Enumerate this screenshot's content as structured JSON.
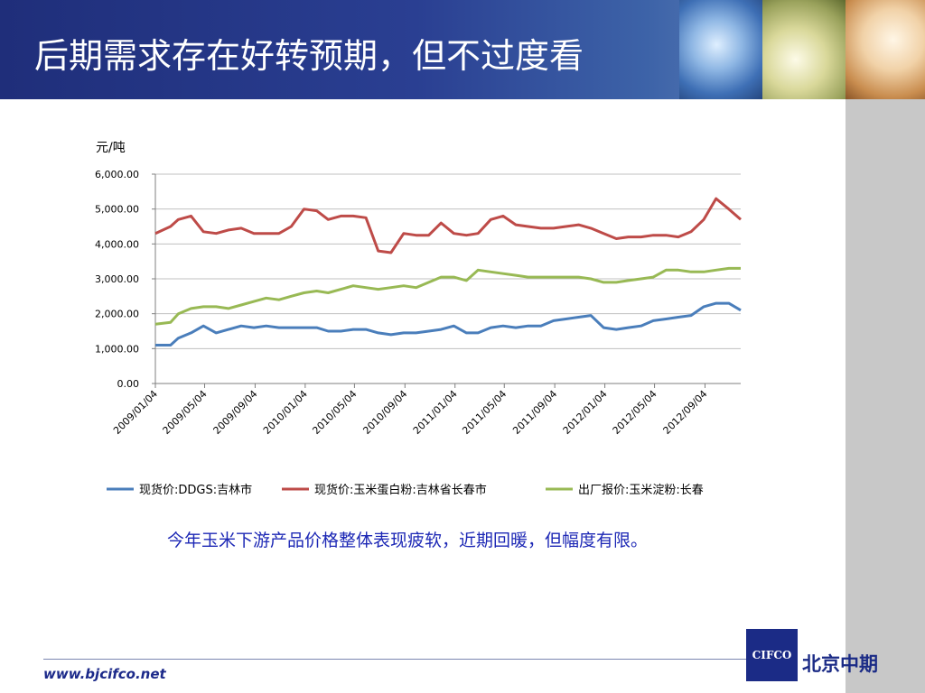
{
  "slide": {
    "title": "后期需求存在好转预期，但不过度看",
    "caption": "今年玉米下游产品价格整体表现疲软，近期回暖，但幅度有限。",
    "footer_url": "www.bjcifco.net",
    "logo_abbr": "CIFCO",
    "logo_name": "北京中期"
  },
  "chart_data": {
    "type": "line",
    "ylabel": "元/吨",
    "ylim": [
      0,
      6000
    ],
    "yticks": [
      "6,000.00",
      "5,000.00",
      "4,000.00",
      "3,000.00",
      "2,000.00",
      "1,000.00",
      "0.00"
    ],
    "ytick_values": [
      6000,
      5000,
      4000,
      3000,
      2000,
      1000,
      0
    ],
    "xlim": [
      "2009/01/04",
      "2012/11/30"
    ],
    "xticks": [
      "2009/01/04",
      "2009/05/04",
      "2009/09/04",
      "2010/01/04",
      "2010/05/04",
      "2010/09/04",
      "2011/01/04",
      "2011/05/04",
      "2011/09/04",
      "2012/01/04",
      "2012/05/04",
      "2012/09/04"
    ],
    "grid": "horizontal",
    "legend_position": "bottom",
    "colors": [
      "#4a7ebb",
      "#be4b48",
      "#98b954"
    ],
    "series": [
      {
        "name": "现货价:DDGS:吉林市",
        "x": [
          "2009/01/04",
          "2009/02/10",
          "2009/03/01",
          "2009/04/01",
          "2009/05/01",
          "2009/06/01",
          "2009/07/01",
          "2009/08/01",
          "2009/09/01",
          "2009/10/01",
          "2009/11/01",
          "2009/12/01",
          "2010/01/01",
          "2010/02/01",
          "2010/03/01",
          "2010/04/01",
          "2010/05/01",
          "2010/06/01",
          "2010/07/01",
          "2010/08/01",
          "2010/09/01",
          "2010/10/01",
          "2010/11/01",
          "2010/12/01",
          "2011/01/01",
          "2011/02/01",
          "2011/03/01",
          "2011/04/01",
          "2011/05/01",
          "2011/06/01",
          "2011/07/01",
          "2011/08/01",
          "2011/09/01",
          "2011/10/01",
          "2011/11/01",
          "2011/12/01",
          "2012/01/01",
          "2012/02/01",
          "2012/03/01",
          "2012/04/01",
          "2012/05/01",
          "2012/06/01",
          "2012/07/01",
          "2012/08/01",
          "2012/09/01",
          "2012/10/01",
          "2012/11/01",
          "2012/11/30"
        ],
        "values": [
          1100,
          1100,
          1300,
          1450,
          1650,
          1450,
          1550,
          1650,
          1600,
          1650,
          1600,
          1600,
          1600,
          1600,
          1500,
          1500,
          1550,
          1550,
          1450,
          1400,
          1450,
          1450,
          1500,
          1550,
          1650,
          1450,
          1450,
          1600,
          1650,
          1600,
          1650,
          1650,
          1800,
          1850,
          1900,
          1950,
          1600,
          1550,
          1600,
          1650,
          1800,
          1850,
          1900,
          1950,
          2200,
          2300,
          2300,
          2100
        ]
      },
      {
        "name": "现货价:玉米蛋白粉:吉林省长春市",
        "x": [
          "2009/01/04",
          "2009/02/10",
          "2009/03/01",
          "2009/04/01",
          "2009/05/01",
          "2009/06/01",
          "2009/07/01",
          "2009/08/01",
          "2009/09/01",
          "2009/10/01",
          "2009/11/01",
          "2009/12/01",
          "2010/01/01",
          "2010/02/01",
          "2010/03/01",
          "2010/04/01",
          "2010/05/01",
          "2010/06/01",
          "2010/07/01",
          "2010/08/01",
          "2010/09/01",
          "2010/10/01",
          "2010/11/01",
          "2010/12/01",
          "2011/01/01",
          "2011/02/01",
          "2011/03/01",
          "2011/04/01",
          "2011/05/01",
          "2011/06/01",
          "2011/07/01",
          "2011/08/01",
          "2011/09/01",
          "2011/10/01",
          "2011/11/01",
          "2011/12/01",
          "2012/01/01",
          "2012/02/01",
          "2012/03/01",
          "2012/04/01",
          "2012/05/01",
          "2012/06/01",
          "2012/07/01",
          "2012/08/01",
          "2012/09/01",
          "2012/10/01",
          "2012/11/01",
          "2012/11/30"
        ],
        "values": [
          4300,
          4500,
          4700,
          4800,
          4350,
          4300,
          4400,
          4450,
          4300,
          4300,
          4300,
          4500,
          5000,
          4950,
          4700,
          4800,
          4800,
          4750,
          3800,
          3750,
          4300,
          4250,
          4250,
          4600,
          4300,
          4250,
          4300,
          4700,
          4800,
          4550,
          4500,
          4450,
          4450,
          4500,
          4550,
          4450,
          4300,
          4150,
          4200,
          4200,
          4250,
          4250,
          4200,
          4350,
          4700,
          5300,
          5000,
          4700
        ]
      },
      {
        "name": "出厂报价:玉米淀粉:长春",
        "x": [
          "2009/01/04",
          "2009/02/10",
          "2009/03/01",
          "2009/04/01",
          "2009/05/01",
          "2009/06/01",
          "2009/07/01",
          "2009/08/01",
          "2009/09/01",
          "2009/10/01",
          "2009/11/01",
          "2009/12/01",
          "2010/01/01",
          "2010/02/01",
          "2010/03/01",
          "2010/04/01",
          "2010/05/01",
          "2010/06/01",
          "2010/07/01",
          "2010/08/01",
          "2010/09/01",
          "2010/10/01",
          "2010/11/01",
          "2010/12/01",
          "2011/01/01",
          "2011/02/01",
          "2011/03/01",
          "2011/04/01",
          "2011/05/01",
          "2011/06/01",
          "2011/07/01",
          "2011/08/01",
          "2011/09/01",
          "2011/10/01",
          "2011/11/01",
          "2011/12/01",
          "2012/01/01",
          "2012/02/01",
          "2012/03/01",
          "2012/04/01",
          "2012/05/01",
          "2012/06/01",
          "2012/07/01",
          "2012/08/01",
          "2012/09/01",
          "2012/10/01",
          "2012/11/01",
          "2012/11/30"
        ],
        "values": [
          1700,
          1750,
          2000,
          2150,
          2200,
          2200,
          2150,
          2250,
          2350,
          2450,
          2400,
          2500,
          2600,
          2650,
          2600,
          2700,
          2800,
          2750,
          2700,
          2750,
          2800,
          2750,
          2900,
          3050,
          3050,
          2950,
          3250,
          3200,
          3150,
          3100,
          3050,
          3050,
          3050,
          3050,
          3050,
          3000,
          2900,
          2900,
          2950,
          3000,
          3050,
          3250,
          3250,
          3200,
          3200,
          3250,
          3300,
          3300
        ]
      }
    ]
  }
}
